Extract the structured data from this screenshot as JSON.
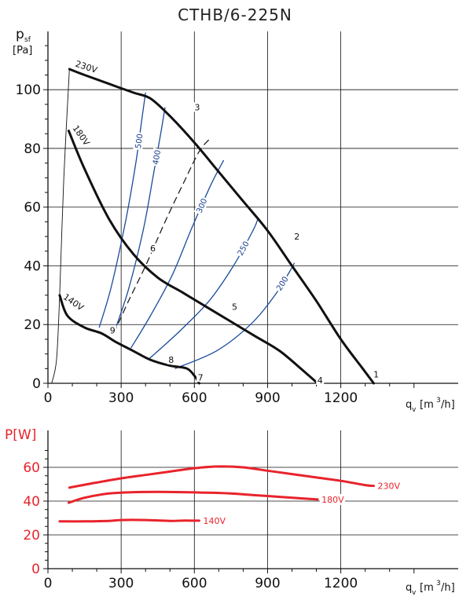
{
  "title": "CTHB/6-225N",
  "chart_data": [
    {
      "type": "line",
      "ylabel_main": "p",
      "ylabel_sub": "sf",
      "ylabel_unit": "[Pa]",
      "xlabel_main": "q",
      "xlabel_sub": "v",
      "xlabel_unit": "[m",
      "xlabel_sup": "3",
      "xlabel_unit_end": "/h]",
      "xlim": [
        0,
        1500
      ],
      "ylim": [
        0,
        120
      ],
      "xticks": [
        "0",
        "300",
        "600",
        "900",
        "1200"
      ],
      "yticks": [
        "0",
        "20",
        "40",
        "60",
        "80",
        "100"
      ],
      "grid": true,
      "fan_curves": [
        {
          "name": "230V",
          "color": "#111111",
          "x": [
            88,
            150,
            250,
            350,
            420,
            500,
            600,
            700,
            800,
            900,
            1000,
            1100,
            1200,
            1290,
            1335
          ],
          "y": [
            107,
            105,
            102,
            99,
            97,
            91,
            82,
            72,
            62,
            52,
            40,
            28,
            15,
            5,
            0
          ]
        },
        {
          "name": "180V",
          "color": "#111111",
          "x": [
            85,
            150,
            250,
            350,
            450,
            550,
            650,
            750,
            850,
            950,
            1050,
            1105
          ],
          "y": [
            86,
            73,
            56,
            44,
            36,
            31,
            26,
            21,
            16,
            11,
            4,
            0
          ]
        },
        {
          "name": "140V",
          "color": "#111111",
          "x": [
            48,
            80,
            150,
            220,
            280,
            350,
            420,
            500,
            570,
            605,
            620
          ],
          "y": [
            30,
            23,
            19,
            17,
            14,
            11,
            8,
            6,
            5,
            2,
            0
          ]
        }
      ],
      "efficiency_curves": [
        {
          "name": "500",
          "x": [
            210,
            260,
            320,
            360,
            385,
            400
          ],
          "y": [
            19,
            33,
            56,
            75,
            90,
            99
          ]
        },
        {
          "name": "400",
          "x": [
            270,
            330,
            390,
            430,
            460,
            480
          ],
          "y": [
            17,
            32,
            52,
            70,
            84,
            94
          ]
        },
        {
          "name": "300",
          "x": [
            340,
            420,
            510,
            590,
            670,
            720
          ],
          "y": [
            12,
            23,
            37,
            53,
            68,
            76
          ]
        },
        {
          "name": "250",
          "x": [
            410,
            530,
            660,
            760,
            840,
            860
          ],
          "y": [
            8,
            17,
            28,
            40,
            52,
            56
          ]
        },
        {
          "name": "200",
          "x": [
            520,
            690,
            830,
            930,
            990,
            1010
          ],
          "y": [
            5,
            11,
            20,
            30,
            38,
            41
          ]
        }
      ],
      "system_line": {
        "x": [
          270,
          330,
          400,
          480,
          560,
          620,
          660
        ],
        "y": [
          17,
          28,
          40,
          55,
          69,
          79,
          83
        ]
      },
      "point_labels": [
        {
          "label": "1",
          "x": 1345,
          "y": 2
        },
        {
          "label": "2",
          "x": 1020,
          "y": 49
        },
        {
          "label": "3",
          "x": 612,
          "y": 93
        },
        {
          "label": "4",
          "x": 1115,
          "y": 0
        },
        {
          "label": "5",
          "x": 765,
          "y": 25
        },
        {
          "label": "6",
          "x": 430,
          "y": 45
        },
        {
          "label": "7",
          "x": 625,
          "y": 1
        },
        {
          "label": "8",
          "x": 505,
          "y": 7
        },
        {
          "label": "9",
          "x": 265,
          "y": 17
        }
      ],
      "curve_labels": [
        {
          "label": "230V",
          "x": 110,
          "y": 108
        },
        {
          "label": "180V",
          "x": 100,
          "y": 87
        },
        {
          "label": "140V",
          "x": 60,
          "y": 29
        }
      ]
    },
    {
      "type": "line",
      "ylabel": "P[W]",
      "xlabel_main": "q",
      "xlabel_sub": "v",
      "xlabel_unit": "[m",
      "xlabel_sup": "3",
      "xlabel_unit_end": "/h]",
      "xlim": [
        0,
        1500
      ],
      "ylim": [
        0,
        70
      ],
      "xticks": [
        "0",
        "300",
        "600",
        "900",
        "1200"
      ],
      "yticks": [
        "0",
        "20",
        "40",
        "60"
      ],
      "grid": true,
      "series": [
        {
          "name": "230V",
          "color": "#e8232b",
          "x": [
            88,
            200,
            300,
            400,
            500,
            600,
            700,
            800,
            900,
            1000,
            1100,
            1200,
            1300,
            1335
          ],
          "y": [
            48,
            51,
            53.5,
            55.5,
            57.5,
            59.5,
            60.5,
            60,
            58,
            56,
            54,
            52,
            49.5,
            49
          ]
        },
        {
          "name": "180V",
          "color": "#e8232b",
          "x": [
            85,
            150,
            250,
            350,
            450,
            550,
            650,
            750,
            850,
            950,
            1050,
            1105
          ],
          "y": [
            39,
            42,
            44.5,
            45.3,
            45.5,
            45.3,
            45,
            44.5,
            43.5,
            42.5,
            41.5,
            41
          ]
        },
        {
          "name": "140V",
          "color": "#e8232b",
          "x": [
            48,
            150,
            250,
            300,
            400,
            500,
            560,
            620
          ],
          "y": [
            28,
            28,
            28.3,
            28.8,
            28.8,
            28.3,
            28.5,
            28.4
          ]
        }
      ]
    }
  ]
}
